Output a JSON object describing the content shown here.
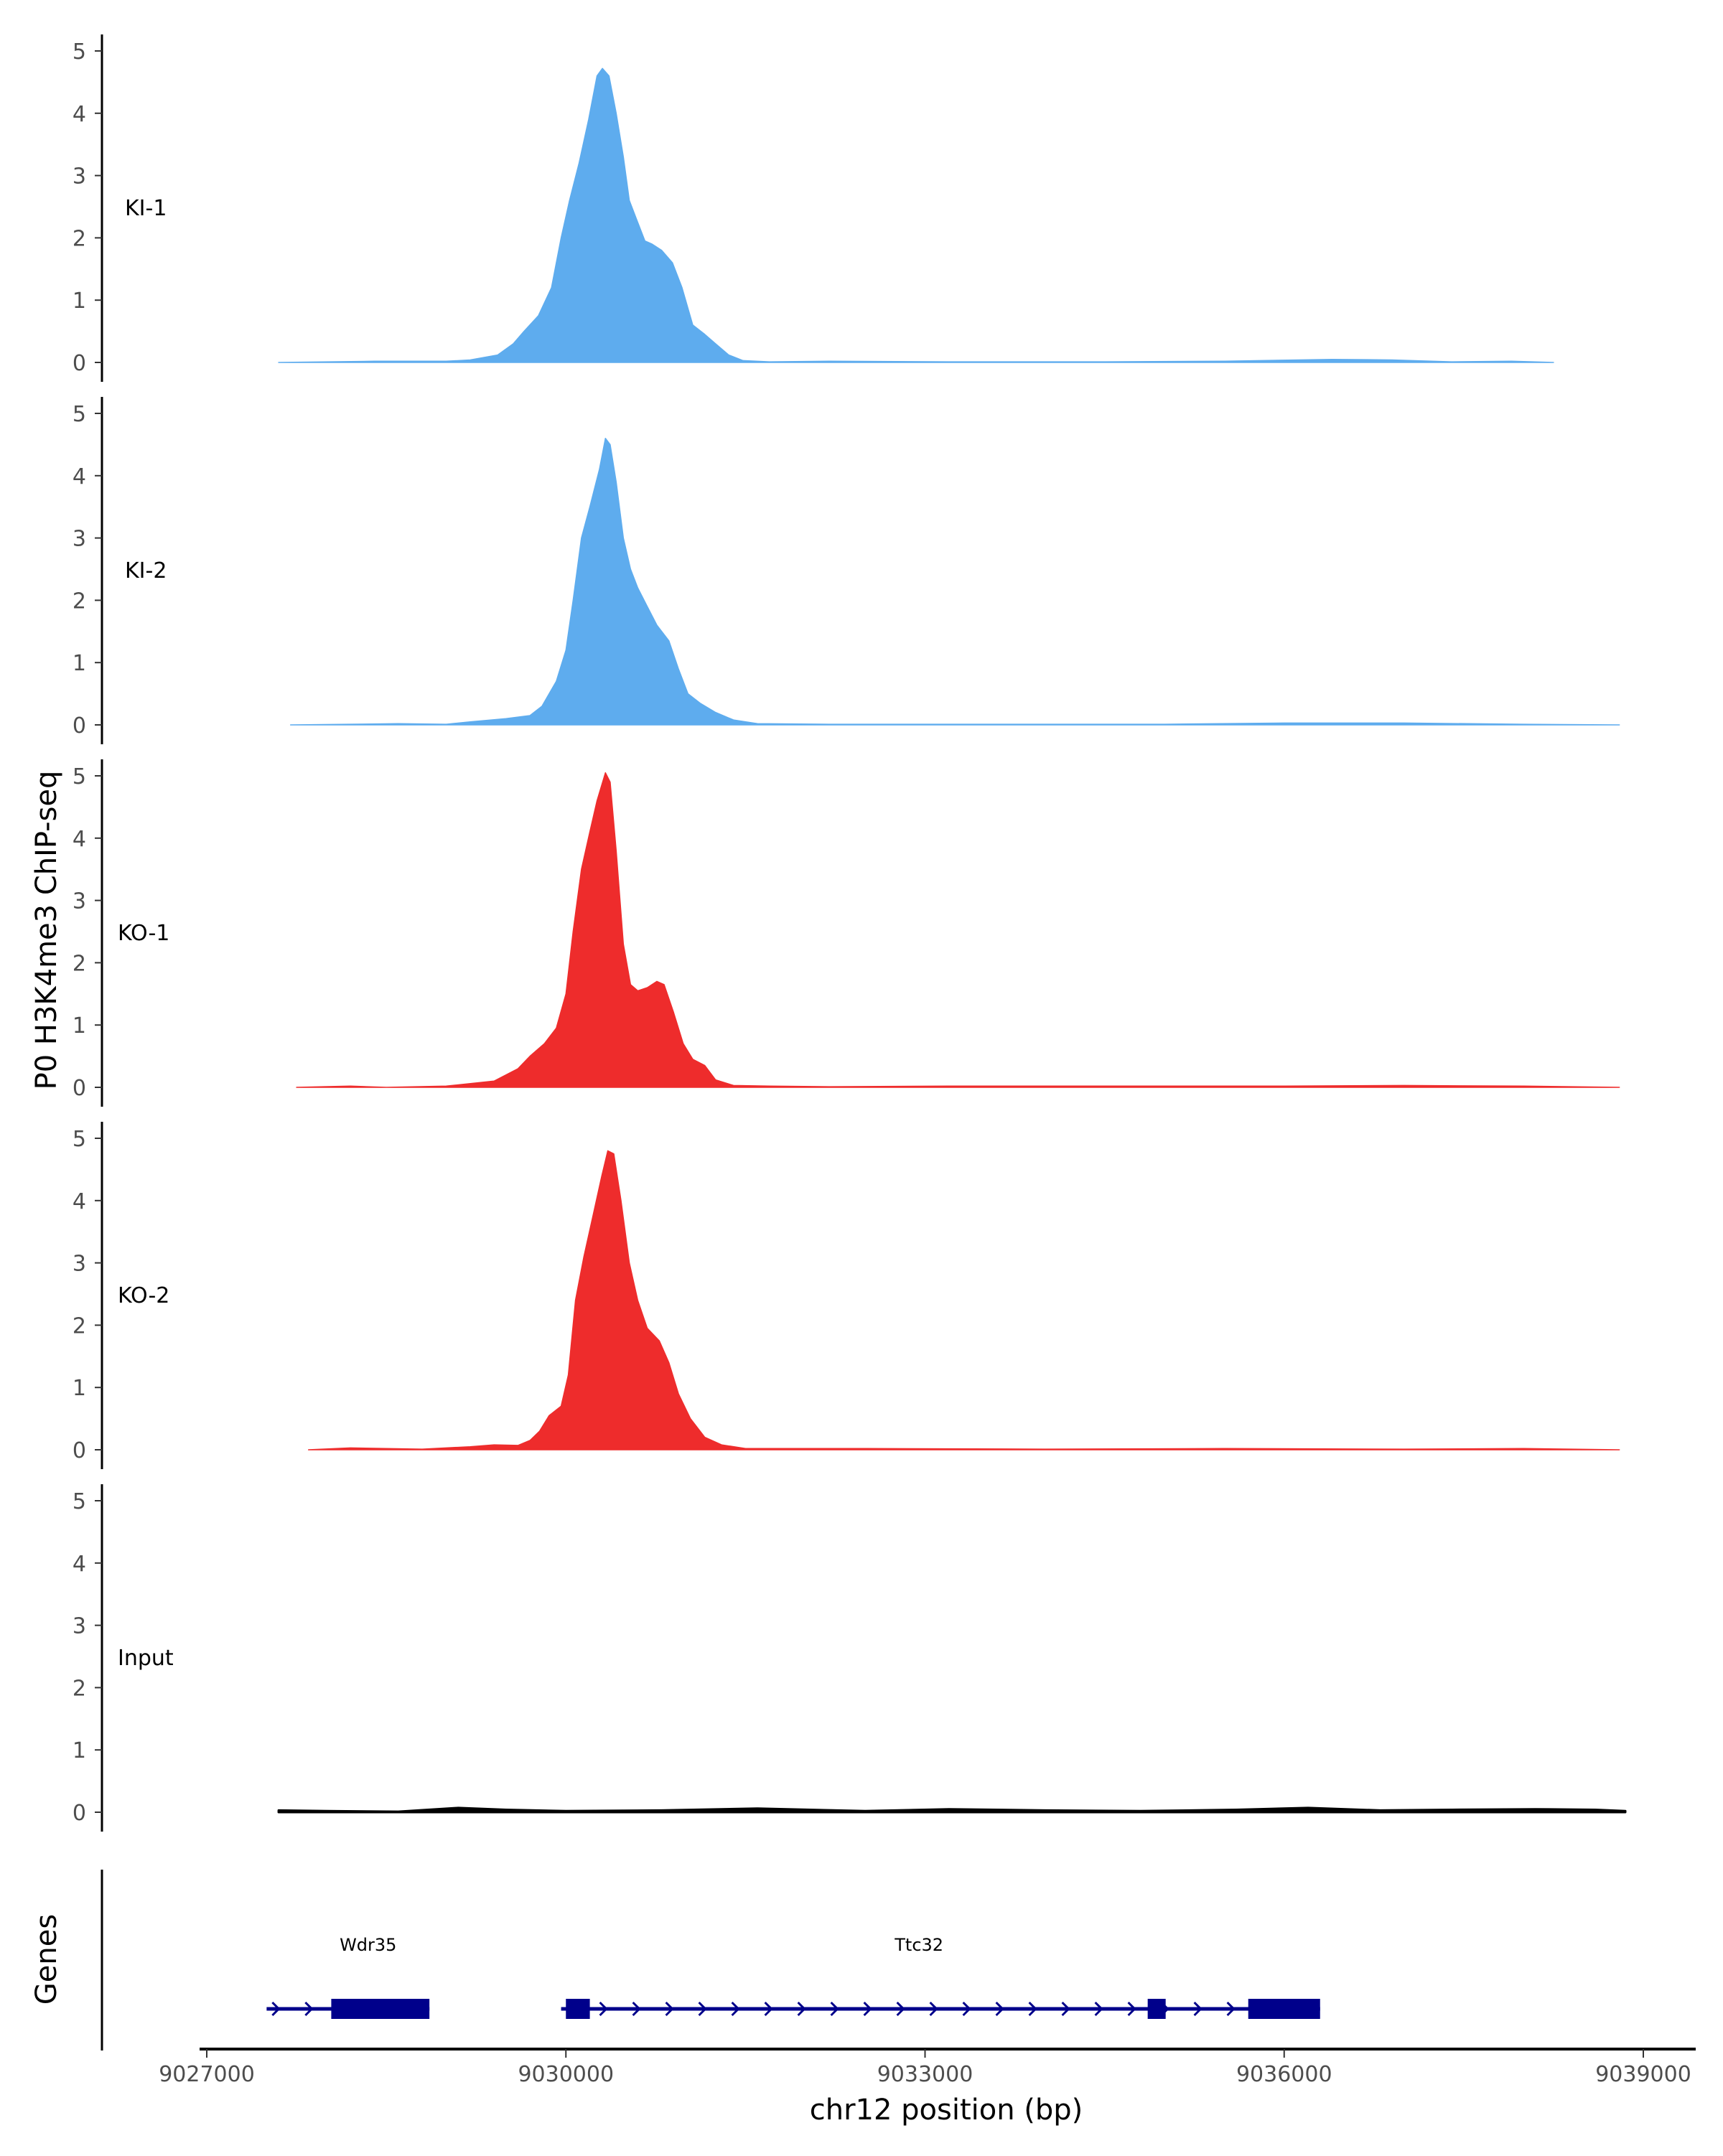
{
  "chart_data": {
    "type": "area",
    "ylabel": "P0 H3K4me3 ChIP-seq",
    "xlabel": "chr12 position (bp)",
    "xlim": [
      9026950,
      9039250
    ],
    "xticks": [
      9027000,
      9030000,
      9033000,
      9036000,
      9039000
    ],
    "xtick_labels": [
      "9027000",
      "9030000",
      "9033000",
      "9036000",
      "9039000"
    ],
    "ylim": [
      0,
      5.2
    ],
    "yticks": [
      0,
      1,
      2,
      3,
      4,
      5
    ],
    "ytick_labels": [
      "0",
      "1",
      "2",
      "3",
      "4",
      "5"
    ],
    "grid": false,
    "series": [
      {
        "name": "KI-1",
        "color": "#5eacee",
        "points": [
          [
            9027600,
            0
          ],
          [
            9028400,
            0.02
          ],
          [
            9029000,
            0.02
          ],
          [
            9029200,
            0.04
          ],
          [
            9029430,
            0.12
          ],
          [
            9029560,
            0.3
          ],
          [
            9029650,
            0.5
          ],
          [
            9029770,
            0.75
          ],
          [
            9029880,
            1.2
          ],
          [
            9029960,
            2.0
          ],
          [
            9030030,
            2.6
          ],
          [
            9030110,
            3.2
          ],
          [
            9030190,
            3.9
          ],
          [
            9030260,
            4.6
          ],
          [
            9030305,
            4.72
          ],
          [
            9030360,
            4.6
          ],
          [
            9030420,
            4.0
          ],
          [
            9030480,
            3.3
          ],
          [
            9030530,
            2.6
          ],
          [
            9030590,
            2.3
          ],
          [
            9030660,
            1.95
          ],
          [
            9030720,
            1.9
          ],
          [
            9030800,
            1.8
          ],
          [
            9030890,
            1.6
          ],
          [
            9030970,
            1.2
          ],
          [
            9031060,
            0.6
          ],
          [
            9031160,
            0.45
          ],
          [
            9031250,
            0.3
          ],
          [
            9031360,
            0.12
          ],
          [
            9031480,
            0.03
          ],
          [
            9031700,
            0.01
          ],
          [
            9032200,
            0.02
          ],
          [
            9033200,
            0.01
          ],
          [
            9034500,
            0.01
          ],
          [
            9035500,
            0.02
          ],
          [
            9036400,
            0.05
          ],
          [
            9036900,
            0.04
          ],
          [
            9037400,
            0.01
          ],
          [
            9037900,
            0.02
          ],
          [
            9038250,
            0
          ]
        ]
      },
      {
        "name": "KI-2",
        "color": "#5eacee",
        "points": [
          [
            9027700,
            0
          ],
          [
            9028600,
            0.02
          ],
          [
            9029000,
            0.01
          ],
          [
            9029200,
            0.05
          ],
          [
            9029500,
            0.1
          ],
          [
            9029700,
            0.15
          ],
          [
            9029800,
            0.3
          ],
          [
            9029920,
            0.7
          ],
          [
            9030000,
            1.2
          ],
          [
            9030060,
            2.0
          ],
          [
            9030130,
            3.0
          ],
          [
            9030200,
            3.5
          ],
          [
            9030280,
            4.1
          ],
          [
            9030330,
            4.6
          ],
          [
            9030370,
            4.5
          ],
          [
            9030420,
            3.9
          ],
          [
            9030480,
            3.0
          ],
          [
            9030540,
            2.5
          ],
          [
            9030600,
            2.2
          ],
          [
            9030680,
            1.9
          ],
          [
            9030760,
            1.6
          ],
          [
            9030860,
            1.35
          ],
          [
            9030940,
            0.9
          ],
          [
            9031020,
            0.5
          ],
          [
            9031120,
            0.35
          ],
          [
            9031250,
            0.2
          ],
          [
            9031400,
            0.08
          ],
          [
            9031600,
            0.02
          ],
          [
            9032200,
            0.01
          ],
          [
            9033500,
            0.01
          ],
          [
            9035000,
            0.01
          ],
          [
            9036000,
            0.03
          ],
          [
            9037000,
            0.03
          ],
          [
            9038000,
            0.01
          ],
          [
            9038800,
            0
          ]
        ]
      },
      {
        "name": "KO-1",
        "color": "#ee2c2c",
        "points": [
          [
            9027750,
            0
          ],
          [
            9028200,
            0.02
          ],
          [
            9028500,
            0
          ],
          [
            9029000,
            0.02
          ],
          [
            9029400,
            0.1
          ],
          [
            9029600,
            0.3
          ],
          [
            9029700,
            0.5
          ],
          [
            9029820,
            0.7
          ],
          [
            9029920,
            0.95
          ],
          [
            9030000,
            1.5
          ],
          [
            9030060,
            2.5
          ],
          [
            9030130,
            3.5
          ],
          [
            9030200,
            4.1
          ],
          [
            9030260,
            4.6
          ],
          [
            9030330,
            5.05
          ],
          [
            9030370,
            4.9
          ],
          [
            9030420,
            3.8
          ],
          [
            9030480,
            2.3
          ],
          [
            9030540,
            1.65
          ],
          [
            9030600,
            1.55
          ],
          [
            9030680,
            1.6
          ],
          [
            9030760,
            1.7
          ],
          [
            9030820,
            1.65
          ],
          [
            9030900,
            1.2
          ],
          [
            9030980,
            0.7
          ],
          [
            9031060,
            0.45
          ],
          [
            9031160,
            0.35
          ],
          [
            9031250,
            0.12
          ],
          [
            9031400,
            0.03
          ],
          [
            9031700,
            0.02
          ],
          [
            9032200,
            0.01
          ],
          [
            9033200,
            0.02
          ],
          [
            9034200,
            0.02
          ],
          [
            9035200,
            0.02
          ],
          [
            9036000,
            0.02
          ],
          [
            9037000,
            0.03
          ],
          [
            9038000,
            0.02
          ],
          [
            9038800,
            0
          ]
        ]
      },
      {
        "name": "KO-2",
        "color": "#ee2c2c",
        "points": [
          [
            9027850,
            0
          ],
          [
            9028200,
            0.03
          ],
          [
            9028800,
            0.01
          ],
          [
            9029200,
            0.05
          ],
          [
            9029400,
            0.08
          ],
          [
            9029600,
            0.07
          ],
          [
            9029700,
            0.15
          ],
          [
            9029780,
            0.3
          ],
          [
            9029860,
            0.55
          ],
          [
            9029960,
            0.7
          ],
          [
            9030020,
            1.2
          ],
          [
            9030080,
            2.4
          ],
          [
            9030150,
            3.1
          ],
          [
            9030220,
            3.7
          ],
          [
            9030300,
            4.4
          ],
          [
            9030350,
            4.8
          ],
          [
            9030400,
            4.75
          ],
          [
            9030460,
            4.0
          ],
          [
            9030530,
            3.0
          ],
          [
            9030600,
            2.4
          ],
          [
            9030680,
            1.95
          ],
          [
            9030780,
            1.75
          ],
          [
            9030860,
            1.4
          ],
          [
            9030940,
            0.9
          ],
          [
            9031040,
            0.5
          ],
          [
            9031160,
            0.2
          ],
          [
            9031300,
            0.08
          ],
          [
            9031500,
            0.02
          ],
          [
            9032500,
            0.02
          ],
          [
            9034000,
            0.01
          ],
          [
            9035500,
            0.02
          ],
          [
            9037000,
            0.01
          ],
          [
            9038000,
            0.02
          ],
          [
            9038800,
            0
          ]
        ]
      },
      {
        "name": "Input",
        "color": "#000000",
        "points": [
          [
            9027600,
            0.03
          ],
          [
            9028000,
            0.02
          ],
          [
            9028600,
            0.01
          ],
          [
            9029100,
            0.07
          ],
          [
            9029500,
            0.04
          ],
          [
            9030000,
            0.02
          ],
          [
            9030800,
            0.03
          ],
          [
            9031600,
            0.06
          ],
          [
            9032500,
            0.02
          ],
          [
            9033200,
            0.05
          ],
          [
            9034000,
            0.03
          ],
          [
            9034800,
            0.02
          ],
          [
            9035600,
            0.04
          ],
          [
            9036200,
            0.07
          ],
          [
            9036800,
            0.03
          ],
          [
            9037400,
            0.04
          ],
          [
            9038100,
            0.05
          ],
          [
            9038600,
            0.04
          ],
          [
            9038850,
            0.02
          ]
        ]
      }
    ],
    "genes_track": {
      "label": "Genes",
      "color": "#00008b",
      "genes": [
        {
          "name": "Wdr35",
          "start": 9027500,
          "end": 9028860,
          "exons": [
            [
              9028040,
              9028860
            ]
          ]
        },
        {
          "name": "Ttc32",
          "start": 9029960,
          "end": 9036300,
          "exons": [
            [
              9030000,
              9030200
            ],
            [
              9034860,
              9035010
            ],
            [
              9035700,
              9036300
            ]
          ]
        }
      ]
    }
  }
}
